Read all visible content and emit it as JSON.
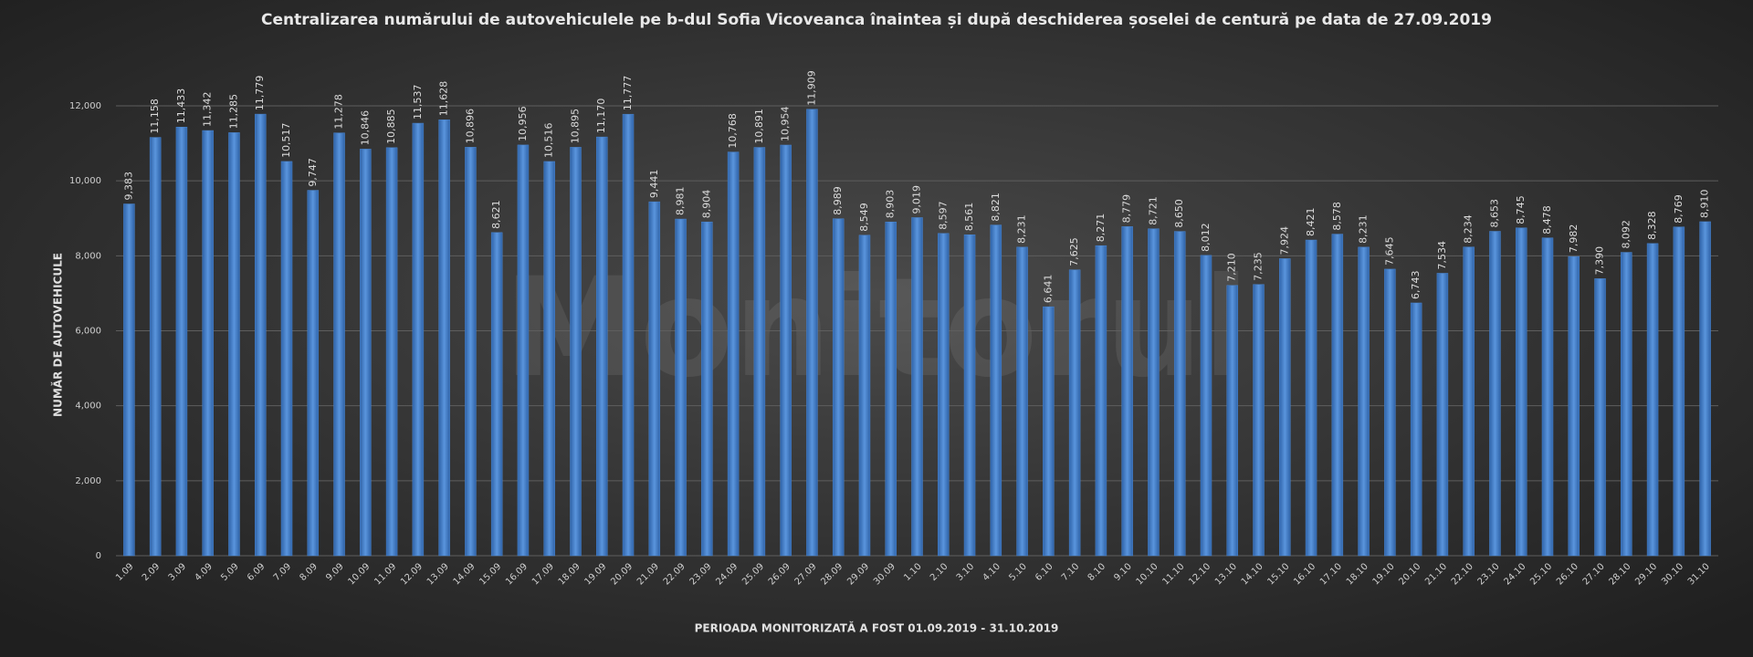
{
  "chart_data": {
    "type": "bar",
    "title": "Centralizarea numărului de autovehiculele  pe b-dul Sofia Vicoveanca  înaintea și după  deschiderea șoselei de centură pe data de 27.09.2019",
    "y_label": "NUMĂR DE AUTOVEHICULE",
    "x_label": "PERIOADA   MONITORIZATĂ A FOST 01.09.2019 - 31.10.2019",
    "watermark": "Monitorul",
    "color": "#4a86d0",
    "grid": true,
    "ylim": [
      0,
      12000
    ],
    "yticks": [
      0,
      {
        "value": 2000,
        "label": "2,000"
      },
      {
        "value": 4000,
        "label": "4,000"
      },
      {
        "value": 6000,
        "label": "6,000"
      },
      {
        "value": 8000,
        "label": "8,000"
      },
      {
        "value": 10000,
        "label": "10,000"
      },
      {
        "value": 12000,
        "label": "12,000"
      }
    ],
    "categories": [
      "1.09",
      "2.09",
      "3.09",
      "4.09",
      "5.09",
      "6.09",
      "7.09",
      "8.09",
      "9.09",
      "10.09",
      "11.09",
      "12.09",
      "13.09",
      "14.09",
      "15.09",
      "16.09",
      "17.09",
      "18.09",
      "19.09",
      "20.09",
      "21.09",
      "22.09",
      "23.09",
      "24.09",
      "25.09",
      "26.09",
      "27.09",
      "28.09",
      "29.09",
      "30.09",
      "1.10",
      "2.10",
      "3.10",
      "4.10",
      "5.10",
      "6.10",
      "7.10",
      "8.10",
      "9.10",
      "10.10",
      "11.10",
      "12.10",
      "13.10",
      "14.10",
      "15.10",
      "16.10",
      "17.10",
      "18.10",
      "19.10",
      "20.10",
      "21.10",
      "22.10",
      "23.10",
      "24.10",
      "25.10",
      "26.10",
      "27.10",
      "28.10",
      "29.10",
      "30.10",
      "31.10"
    ],
    "values": [
      9383,
      11158,
      11433,
      11342,
      11285,
      11779,
      10517,
      9747,
      11278,
      10846,
      10885,
      11537,
      11628,
      10896,
      8621,
      10956,
      10516,
      10895,
      11170,
      11777,
      9441,
      8981,
      8904,
      10768,
      10891,
      10954,
      11909,
      8989,
      8549,
      8903,
      9019,
      8597,
      8561,
      8821,
      8231,
      6641,
      7625,
      8271,
      8779,
      8721,
      8650,
      8012,
      7210,
      7235,
      7924,
      8421,
      8578,
      8231,
      7645,
      6743,
      7534,
      8234,
      8653,
      8745,
      8478,
      7982,
      7390,
      8092,
      8328,
      8769,
      8910
    ],
    "value_labels": [
      "9,383",
      "11,158",
      "11,433",
      "11,342",
      "11,285",
      "11,779",
      "10,517",
      "9,747",
      "11,278",
      "10,846",
      "10,885",
      "11,537",
      "11,628",
      "10,896",
      "8,621",
      "10,956",
      "10,516",
      "10,895",
      "11,170",
      "11,777",
      "9,441",
      "8,981",
      "8,904",
      "10,768",
      "10,891",
      "10,954",
      "11,909",
      "8,989",
      "8,549",
      "8,903",
      "9,019",
      "8,597",
      "8,561",
      "8,821",
      "8,231",
      "6,641",
      "7,625",
      "8,271",
      "8,779",
      "8,721",
      "8,650",
      "8,012",
      "7,210",
      "7,235",
      "7,924",
      "8,421",
      "8,578",
      "8,231",
      "7,645",
      "6,743",
      "7,534",
      "8,234",
      "8,653",
      "8,745",
      "8,478",
      "7,982",
      "7,390",
      "8,092",
      "8,328",
      "8,769",
      "8,910"
    ]
  }
}
